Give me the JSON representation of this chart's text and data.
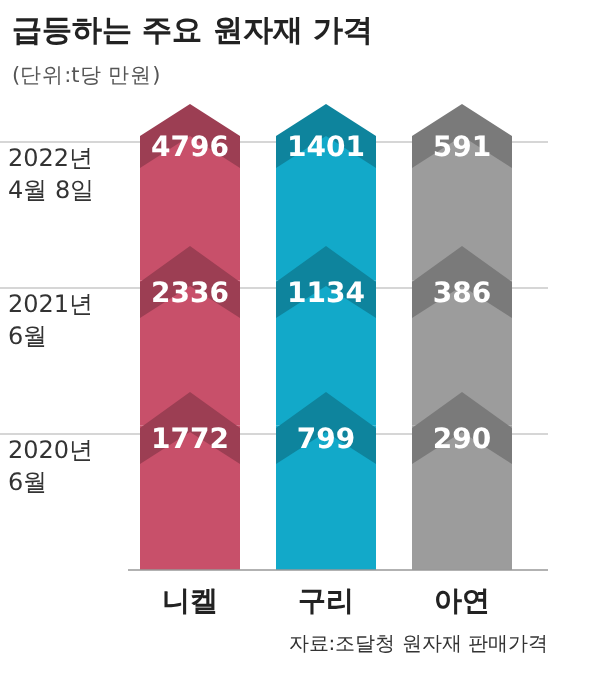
{
  "chart_data": {
    "type": "heatmap",
    "title": "급등하는 주요 원자재 가격",
    "subtitle": "(단위:t당 만원)",
    "categories": [
      "니켈",
      "구리",
      "아연"
    ],
    "y_categories": [
      "2022년 4월 8일",
      "2021년 6월",
      "2020년 6월"
    ],
    "cells": [
      [
        4796,
        1401,
        591
      ],
      [
        2336,
        1134,
        386
      ],
      [
        1772,
        799,
        290
      ]
    ],
    "colors": [
      "#c8506a",
      "#12a9c9",
      "#9c9c9c"
    ],
    "grid": true,
    "data_labels": true,
    "annotations": [
      "자료:조달청 원자재 판매가격"
    ]
  }
}
